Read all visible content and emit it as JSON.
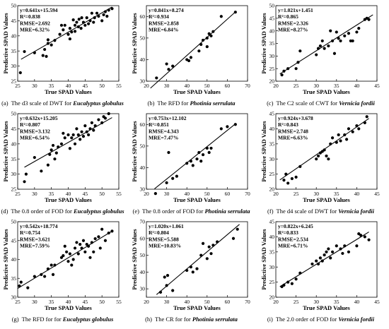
{
  "chart_data": [
    {
      "type": "scatter",
      "caption": {
        "tag": "(a)",
        "text": "The d3 scale of  DWT for ",
        "species": "Eucalyptus globulus"
      },
      "xlabel": "True SPAD Values",
      "ylabel": "Predictive SPAD Values",
      "xlim": [
        25,
        55
      ],
      "ylim": [
        25,
        50
      ],
      "xticks": [
        25,
        30,
        35,
        40,
        45,
        50,
        55
      ],
      "yticks": [
        25,
        30,
        35,
        40,
        45,
        50
      ],
      "stats": [
        "y=0.641x+15.594",
        "R²=0.838",
        "RMSE=2.692",
        "MRE=6.32%"
      ],
      "fit": {
        "slope": 0.641,
        "intercept": 15.594,
        "x_range": [
          26,
          53
        ]
      },
      "points": [
        [
          25.8,
          27.8
        ],
        [
          27,
          34.8
        ],
        [
          30,
          34.4
        ],
        [
          32.5,
          33.5
        ],
        [
          33,
          35.5
        ],
        [
          33.5,
          33.2
        ],
        [
          34,
          37.5
        ],
        [
          34,
          38.7
        ],
        [
          35,
          37
        ],
        [
          36,
          38.5
        ],
        [
          37.5,
          40.5
        ],
        [
          38,
          43.5
        ],
        [
          38.5,
          42
        ],
        [
          39,
          43.5
        ],
        [
          40,
          40.5
        ],
        [
          40.5,
          42.5
        ],
        [
          40.5,
          39
        ],
        [
          41,
          41.3
        ],
        [
          41.5,
          45.3
        ],
        [
          42,
          43.5
        ],
        [
          42,
          41.5
        ],
        [
          42.5,
          44.5
        ],
        [
          43,
          43
        ],
        [
          43.2,
          45.5
        ],
        [
          43.8,
          42.5
        ],
        [
          44,
          46
        ],
        [
          44.5,
          44.5
        ],
        [
          45,
          43.5
        ],
        [
          45.5,
          46
        ],
        [
          46,
          44
        ],
        [
          46.5,
          45
        ],
        [
          47,
          47.5
        ],
        [
          47.5,
          44.5
        ],
        [
          47.8,
          46
        ],
        [
          48.5,
          47.5
        ],
        [
          49,
          46.5
        ],
        [
          50,
          45
        ],
        [
          50.5,
          47
        ],
        [
          51,
          48
        ],
        [
          51.5,
          46.5
        ],
        [
          52,
          48.5
        ],
        [
          53,
          49
        ]
      ]
    },
    {
      "type": "scatter",
      "caption": {
        "tag": "(b)",
        "text": "The RFD for ",
        "species": "Photinia serrulata"
      },
      "xlabel": "True SPAD Values",
      "ylabel": "Predictive SPAD Values",
      "xlim": [
        20,
        70
      ],
      "ylim": [
        30,
        65
      ],
      "xticks": [
        20,
        30,
        40,
        50,
        60,
        70
      ],
      "yticks": [
        30,
        40,
        50,
        60
      ],
      "stats": [
        "y=0.841x+8.274",
        "R²=0.934",
        "RMSE=2.858",
        "MRE=6.84%"
      ],
      "fit": {
        "slope": 0.841,
        "intercept": 8.274,
        "x_range": [
          22,
          64
        ]
      },
      "points": [
        [
          25,
          31.5
        ],
        [
          30,
          38
        ],
        [
          31,
          35.5
        ],
        [
          33,
          37
        ],
        [
          40,
          40
        ],
        [
          41,
          39.5
        ],
        [
          42,
          41
        ],
        [
          46,
          44
        ],
        [
          47,
          47
        ],
        [
          48,
          49
        ],
        [
          50,
          50
        ],
        [
          50,
          46
        ],
        [
          51,
          52
        ],
        [
          52,
          51
        ],
        [
          53,
          53
        ],
        [
          57,
          60
        ],
        [
          64,
          62
        ]
      ]
    },
    {
      "type": "scatter",
      "caption": {
        "tag": "(c)",
        "text": "The C2 scale of  CWT for ",
        "species": "Vernicia fordii"
      },
      "xlabel": "True SPAD Values",
      "ylabel": "Predictive SPAD Values",
      "xlim": [
        20,
        45
      ],
      "ylim": [
        20,
        50
      ],
      "xticks": [
        20,
        25,
        30,
        35,
        40,
        45
      ],
      "yticks": [
        20,
        25,
        30,
        35,
        40,
        45,
        50
      ],
      "stats": [
        "y=1.021x+1.451",
        "R²=0.865",
        "RMSE=2.326",
        "MRE=8.27%"
      ],
      "fit": {
        "slope": 1.021,
        "intercept": 1.451,
        "x_range": [
          21,
          44
        ]
      },
      "points": [
        [
          21.5,
          22.5
        ],
        [
          22,
          24
        ],
        [
          23,
          25
        ],
        [
          25,
          25
        ],
        [
          25.5,
          27.5
        ],
        [
          26,
          32
        ],
        [
          30,
          30.5
        ],
        [
          30.5,
          33
        ],
        [
          31,
          34
        ],
        [
          31.5,
          36
        ],
        [
          32,
          33
        ],
        [
          33,
          34
        ],
        [
          33.5,
          40
        ],
        [
          34,
          36
        ],
        [
          34.5,
          31
        ],
        [
          35,
          39.5
        ],
        [
          35.5,
          37
        ],
        [
          36,
          36
        ],
        [
          37,
          38
        ],
        [
          38,
          39
        ],
        [
          38.5,
          36
        ],
        [
          39,
          36
        ],
        [
          40,
          39.5
        ],
        [
          40.5,
          41
        ],
        [
          42,
          44.5
        ],
        [
          42.5,
          45
        ],
        [
          43,
          44.5
        ]
      ]
    },
    {
      "type": "scatter",
      "caption": {
        "tag": "(d)",
        "text": "The 0.8 order of  FOD for ",
        "species": "Eucalyptus globulus"
      },
      "xlabel": "True SPAD Values",
      "ylabel": "Predictive SPAD Values",
      "xlim": [
        25,
        55
      ],
      "ylim": [
        25,
        50
      ],
      "xticks": [
        25,
        30,
        35,
        40,
        45,
        50,
        55
      ],
      "yticks": [
        25,
        30,
        35,
        40,
        45,
        50
      ],
      "stats": [
        "y=0.632x+15.205",
        "R²=0.807",
        "RMSE=3.132",
        "MRE=6.54%"
      ],
      "fit": {
        "slope": 0.632,
        "intercept": 15.205,
        "x_range": [
          27,
          53
        ]
      },
      "points": [
        [
          27,
          27.5
        ],
        [
          27.5,
          30
        ],
        [
          30,
          35.5
        ],
        [
          32,
          31
        ],
        [
          34,
          33
        ],
        [
          34.5,
          36.5
        ],
        [
          35,
          38
        ],
        [
          35.5,
          39.5
        ],
        [
          36,
          35
        ],
        [
          36.5,
          37
        ],
        [
          37,
          39
        ],
        [
          38,
          40
        ],
        [
          38.5,
          43.5
        ],
        [
          39,
          42
        ],
        [
          40,
          43
        ],
        [
          40.5,
          38.5
        ],
        [
          41,
          42
        ],
        [
          41.5,
          43
        ],
        [
          42,
          40
        ],
        [
          42.5,
          45
        ],
        [
          43,
          43
        ],
        [
          43.5,
          41.5
        ],
        [
          44,
          44
        ],
        [
          44.5,
          42.5
        ],
        [
          45,
          46
        ],
        [
          45.5,
          44
        ],
        [
          46,
          43
        ],
        [
          46.5,
          45
        ],
        [
          47,
          47
        ],
        [
          47.5,
          44.5
        ],
        [
          48,
          46
        ],
        [
          49,
          48
        ],
        [
          50,
          47
        ],
        [
          50.5,
          49
        ],
        [
          51,
          48.5
        ],
        [
          52,
          50
        ]
      ]
    },
    {
      "type": "scatter",
      "caption": {
        "tag": "(e)",
        "text": "The 0.8 order of  FOD  for ",
        "species": "Photinia serrulata"
      },
      "xlabel": "True SPAD Values",
      "ylabel": "Predictive SPAD Values",
      "xlim": [
        20,
        70
      ],
      "ylim": [
        30,
        65
      ],
      "xticks": [
        20,
        30,
        40,
        50,
        60,
        70
      ],
      "yticks": [
        30,
        40,
        50,
        60
      ],
      "stats": [
        "y=0.753x+12.102",
        "R²=0.851",
        "RMSE=4.343",
        "MRE=7.47%"
      ],
      "fit": {
        "slope": 0.753,
        "intercept": 12.102,
        "x_range": [
          24,
          64
        ]
      },
      "points": [
        [
          24.5,
          28
        ],
        [
          30,
          33
        ],
        [
          31,
          47
        ],
        [
          33,
          35
        ],
        [
          35,
          36
        ],
        [
          40,
          42
        ],
        [
          42,
          43
        ],
        [
          43,
          41
        ],
        [
          45,
          44
        ],
        [
          46,
          47
        ],
        [
          47,
          43
        ],
        [
          48,
          46
        ],
        [
          50,
          49
        ],
        [
          51,
          47
        ],
        [
          52,
          49
        ],
        [
          57,
          58
        ],
        [
          60,
          59
        ],
        [
          64,
          60
        ]
      ]
    },
    {
      "type": "scatter",
      "caption": {
        "tag": "(f)",
        "text": "The d4 scale of  DWT for ",
        "species": "Vernicia fordii"
      },
      "xlabel": "True SPAD Values",
      "ylabel": "Predictive SPAD Values",
      "xlim": [
        20,
        45
      ],
      "ylim": [
        20,
        45
      ],
      "xticks": [
        20,
        25,
        30,
        35,
        40,
        45
      ],
      "yticks": [
        20,
        25,
        30,
        35,
        40,
        45
      ],
      "stats": [
        "y=0.924x+3.678",
        "R²=0.843",
        "RMSE=2.748",
        "MRE=6.63%"
      ],
      "fit": {
        "slope": 0.924,
        "intercept": 3.678,
        "x_range": [
          21,
          43
        ]
      },
      "points": [
        [
          22,
          23
        ],
        [
          22.5,
          25
        ],
        [
          23,
          22
        ],
        [
          24,
          23.5
        ],
        [
          25,
          24
        ],
        [
          26,
          27.5
        ],
        [
          30,
          30
        ],
        [
          30.5,
          31
        ],
        [
          31,
          32
        ],
        [
          31.5,
          32.5
        ],
        [
          32,
          33
        ],
        [
          32.5,
          31
        ],
        [
          33,
          30
        ],
        [
          33.5,
          35
        ],
        [
          34,
          37
        ],
        [
          35,
          35.5
        ],
        [
          35.5,
          38
        ],
        [
          36,
          36
        ],
        [
          37,
          38
        ],
        [
          37.5,
          36.5
        ],
        [
          38,
          40
        ],
        [
          39,
          39
        ],
        [
          40,
          41
        ],
        [
          40.5,
          40
        ],
        [
          42,
          42
        ],
        [
          42.5,
          44
        ]
      ]
    },
    {
      "type": "scatter",
      "caption": {
        "tag": "(g)",
        "text": "The RFD for  for ",
        "species": "Eucalyptus globulus"
      },
      "xlabel": "True SPAD Values",
      "ylabel": "Predictive SPAD Values",
      "xlim": [
        25,
        55
      ],
      "ylim": [
        30,
        50
      ],
      "xticks": [
        25,
        30,
        35,
        40,
        45,
        50,
        55
      ],
      "yticks": [
        30,
        35,
        40,
        45,
        50
      ],
      "stats": [
        "y=0.542x+18.774",
        "R²=0.754",
        "RMSE=3.621",
        "MRE=7.59%"
      ],
      "fit": {
        "slope": 0.542,
        "intercept": 18.774,
        "x_range": [
          25,
          53
        ]
      },
      "points": [
        [
          25.5,
          33
        ],
        [
          26,
          34
        ],
        [
          28,
          32.5
        ],
        [
          30,
          35.5
        ],
        [
          32,
          36
        ],
        [
          33,
          35.5
        ],
        [
          34,
          37.5
        ],
        [
          35,
          38.5
        ],
        [
          35.5,
          36
        ],
        [
          36,
          38.5
        ],
        [
          38,
          40.5
        ],
        [
          38.5,
          41
        ],
        [
          39,
          43.5
        ],
        [
          39.5,
          42
        ],
        [
          40,
          39.5
        ],
        [
          40.5,
          41.5
        ],
        [
          41,
          38.5
        ],
        [
          41.5,
          40
        ],
        [
          42,
          43
        ],
        [
          42.5,
          44.5
        ],
        [
          43,
          41.5
        ],
        [
          43.5,
          44
        ],
        [
          44,
          43
        ],
        [
          44.5,
          45
        ],
        [
          45,
          42
        ],
        [
          45.5,
          44
        ],
        [
          46,
          43.5
        ],
        [
          46.5,
          40.5
        ],
        [
          47,
          44.5
        ],
        [
          47.5,
          42
        ],
        [
          48,
          45.5
        ],
        [
          49,
          46
        ],
        [
          49.5,
          43
        ],
        [
          50,
          48
        ],
        [
          51,
          45
        ],
        [
          52,
          47
        ],
        [
          53,
          47.5
        ]
      ]
    },
    {
      "type": "scatter",
      "caption": {
        "tag": "(h)",
        "text": "The CR for  for ",
        "species": "Photinia serrulata"
      },
      "xlabel": "True SPAD Values",
      "ylabel": "Predictive SPAD Values",
      "xlim": [
        20,
        70
      ],
      "ylim": [
        25,
        70
      ],
      "xticks": [
        20,
        30,
        40,
        50,
        60,
        70
      ],
      "yticks": [
        30,
        40,
        50,
        60,
        70
      ],
      "stats": [
        "y=1.020x+1.061",
        "R²=0.804",
        "RMSE=5.588",
        "MRE=10.83%"
      ],
      "fit": {
        "slope": 1.02,
        "intercept": 1.061,
        "x_range": [
          25,
          66
        ]
      },
      "points": [
        [
          27,
          28
        ],
        [
          29,
          37
        ],
        [
          30,
          32
        ],
        [
          30.5,
          38
        ],
        [
          33,
          29
        ],
        [
          40,
          41
        ],
        [
          42,
          43
        ],
        [
          43,
          40
        ],
        [
          45,
          42
        ],
        [
          47,
          50
        ],
        [
          48,
          57
        ],
        [
          50,
          48
        ],
        [
          51,
          55
        ],
        [
          52,
          51
        ],
        [
          53,
          56
        ],
        [
          55,
          58
        ],
        [
          63,
          60
        ],
        [
          65,
          65.5
        ]
      ]
    },
    {
      "type": "scatter",
      "caption": {
        "tag": "(i)",
        "text": "The 2.0 order of  FOD for ",
        "species": "Vernicia fordii"
      },
      "xlabel": "True SPAD Values",
      "ylabel": "Predictive SPAD Values",
      "xlim": [
        20,
        45
      ],
      "ylim": [
        20,
        45
      ],
      "xticks": [
        20,
        25,
        30,
        35,
        40,
        45
      ],
      "yticks": [
        20,
        25,
        30,
        35,
        40,
        45
      ],
      "stats": [
        "y=0.822x+6.245",
        "R²=0.833",
        "RMSE=2.534",
        "MRE=6.71%"
      ],
      "fit": {
        "slope": 0.822,
        "intercept": 6.245,
        "x_range": [
          21,
          43
        ]
      },
      "points": [
        [
          21.5,
          23.5
        ],
        [
          22,
          24
        ],
        [
          23,
          25
        ],
        [
          24,
          24.5
        ],
        [
          25,
          26
        ],
        [
          26,
          28
        ],
        [
          29,
          31
        ],
        [
          30,
          32
        ],
        [
          30.5,
          31
        ],
        [
          31,
          33
        ],
        [
          31.5,
          32
        ],
        [
          32,
          34
        ],
        [
          32.5,
          35
        ],
        [
          33,
          36
        ],
        [
          33.5,
          33
        ],
        [
          34,
          35
        ],
        [
          35,
          37
        ],
        [
          36,
          36
        ],
        [
          36.5,
          34.5
        ],
        [
          37,
          37
        ],
        [
          38,
          35
        ],
        [
          40,
          37
        ],
        [
          40.5,
          41
        ],
        [
          41,
          40.5
        ],
        [
          42,
          40
        ],
        [
          43,
          39
        ]
      ]
    }
  ]
}
